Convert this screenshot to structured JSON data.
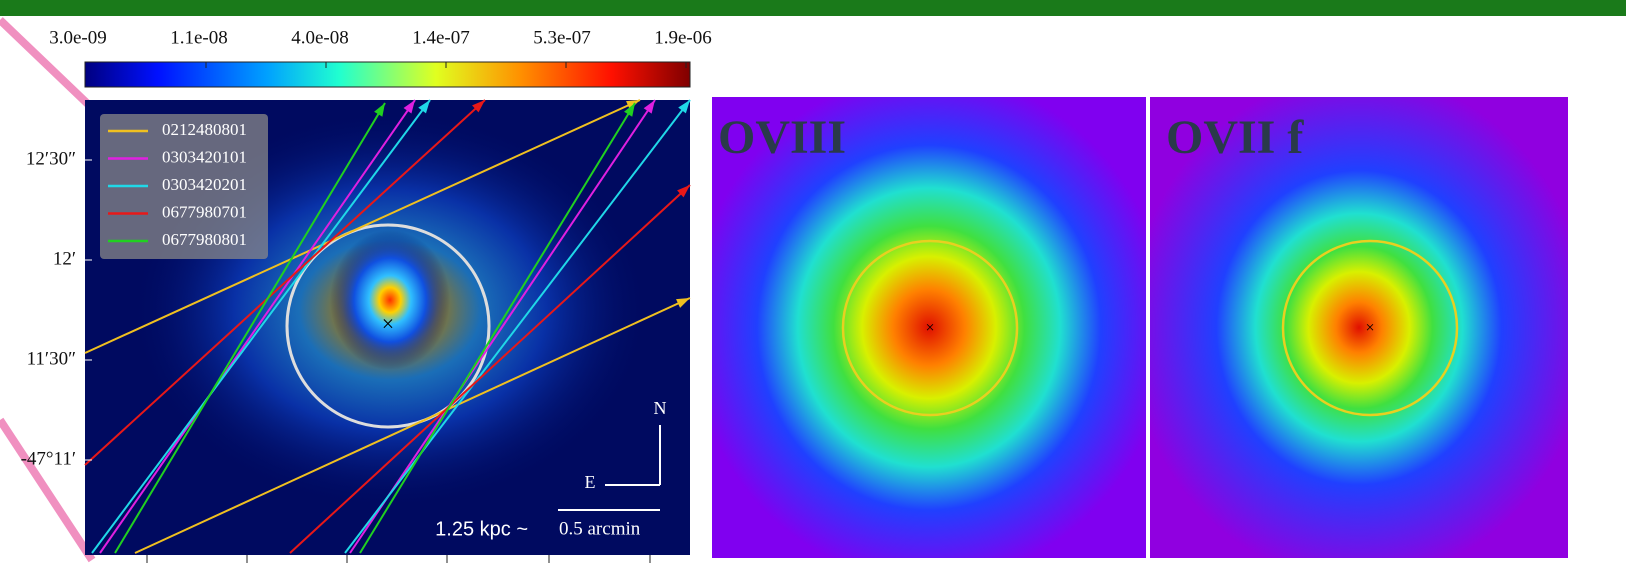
{
  "colorbar": {
    "ticks": [
      "3.0e-09",
      "1.1e-08",
      "4.0e-08",
      "1.4e-07",
      "5.3e-07",
      "1.9e-06"
    ]
  },
  "image": {
    "y_labels": [
      "12′30″",
      "12′",
      "11′30″",
      "-47°11′"
    ],
    "legend": [
      {
        "label": "0212480801",
        "color": "#f0c020"
      },
      {
        "label": "0303420101",
        "color": "#e020e0"
      },
      {
        "label": "0303420201",
        "color": "#20d8e8"
      },
      {
        "label": "0677980701",
        "color": "#e81818"
      },
      {
        "label": "0677980801",
        "color": "#20d020"
      }
    ],
    "compass": {
      "north": "N",
      "east": "E"
    },
    "scale_bar": {
      "physical": "1.25 kpc ~",
      "angular": "0.5 arcmin"
    }
  },
  "panels": [
    {
      "label": "OVIII"
    },
    {
      "label": "OVII f"
    }
  ]
}
